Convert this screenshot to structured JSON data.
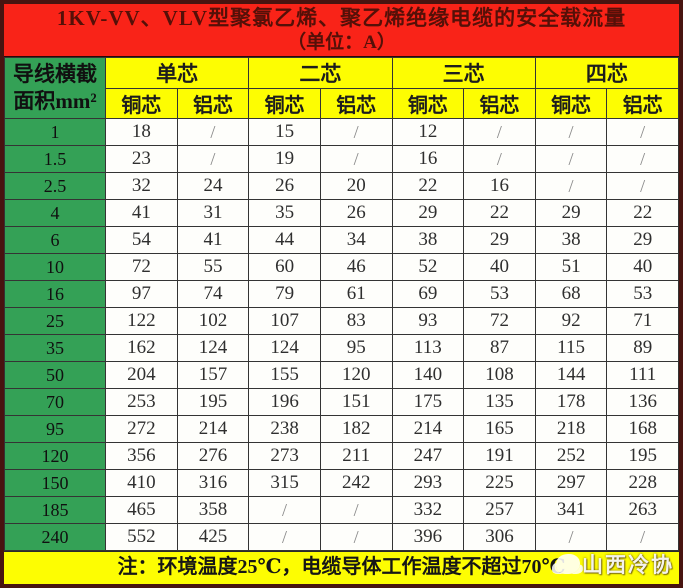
{
  "chart_data": {
    "type": "table",
    "title": "1KV-VV、VLV型聚氯乙烯、聚乙烯绝缘电缆的安全载流量",
    "subtitle": "（单位：A）",
    "row_header": [
      "导线横截",
      "面积mm²"
    ],
    "column_groups": [
      "单芯",
      "二芯",
      "三芯",
      "四芯"
    ],
    "sub_columns": [
      "铜芯",
      "铝芯"
    ],
    "rows": [
      {
        "size": "1",
        "values": [
          "18",
          "/",
          "15",
          "/",
          "12",
          "/",
          "/",
          "/"
        ]
      },
      {
        "size": "1.5",
        "values": [
          "23",
          "/",
          "19",
          "/",
          "16",
          "/",
          "/",
          "/"
        ]
      },
      {
        "size": "2.5",
        "values": [
          "32",
          "24",
          "26",
          "20",
          "22",
          "16",
          "/",
          "/"
        ]
      },
      {
        "size": "4",
        "values": [
          "41",
          "31",
          "35",
          "26",
          "29",
          "22",
          "29",
          "22"
        ]
      },
      {
        "size": "6",
        "values": [
          "54",
          "41",
          "44",
          "34",
          "38",
          "29",
          "38",
          "29"
        ]
      },
      {
        "size": "10",
        "values": [
          "72",
          "55",
          "60",
          "46",
          "52",
          "40",
          "51",
          "40"
        ]
      },
      {
        "size": "16",
        "values": [
          "97",
          "74",
          "79",
          "61",
          "69",
          "53",
          "68",
          "53"
        ]
      },
      {
        "size": "25",
        "values": [
          "122",
          "102",
          "107",
          "83",
          "93",
          "72",
          "92",
          "71"
        ]
      },
      {
        "size": "35",
        "values": [
          "162",
          "124",
          "124",
          "95",
          "113",
          "87",
          "115",
          "89"
        ]
      },
      {
        "size": "50",
        "values": [
          "204",
          "157",
          "155",
          "120",
          "140",
          "108",
          "144",
          "111"
        ]
      },
      {
        "size": "70",
        "values": [
          "253",
          "195",
          "196",
          "151",
          "175",
          "135",
          "178",
          "136"
        ]
      },
      {
        "size": "95",
        "values": [
          "272",
          "214",
          "238",
          "182",
          "214",
          "165",
          "218",
          "168"
        ]
      },
      {
        "size": "120",
        "values": [
          "356",
          "276",
          "273",
          "211",
          "247",
          "191",
          "252",
          "195"
        ]
      },
      {
        "size": "150",
        "values": [
          "410",
          "316",
          "315",
          "242",
          "293",
          "225",
          "297",
          "228"
        ]
      },
      {
        "size": "185",
        "values": [
          "465",
          "358",
          "/",
          "/",
          "332",
          "257",
          "341",
          "263"
        ]
      },
      {
        "size": "240",
        "values": [
          "552",
          "425",
          "/",
          "/",
          "396",
          "306",
          "/",
          "/"
        ]
      }
    ],
    "note": "注：环境温度25℃，电缆导体工作温度不超过70℃"
  },
  "watermark": {
    "text": "山西冷协"
  },
  "colors": {
    "band_red": "#f92318",
    "header_yellow": "#fdfd02",
    "size_green": "#34a156",
    "frame_maroon": "#481410",
    "title_text": "#551008",
    "grid_line": "#343434"
  }
}
